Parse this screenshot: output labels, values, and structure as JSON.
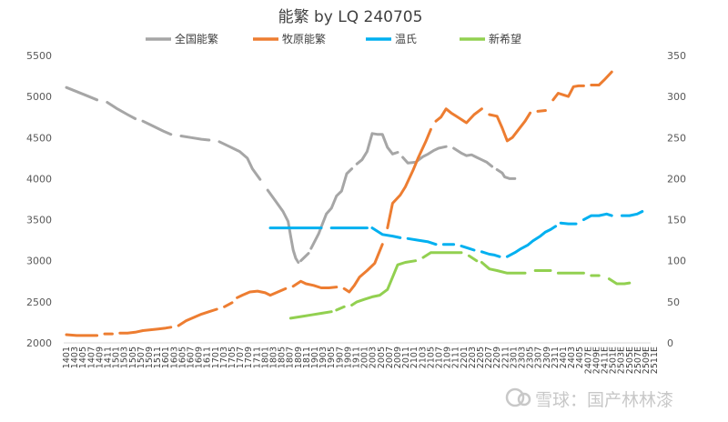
{
  "chart_data": {
    "type": "line",
    "title": "能繁 by LQ 240705",
    "xlabel": "",
    "ylabel": "",
    "y_left": {
      "min": 2000,
      "max": 5500,
      "ticks": [
        2000,
        2500,
        3000,
        3500,
        4000,
        4500,
        5000,
        5500
      ]
    },
    "y_right": {
      "min": 0,
      "max": 350,
      "ticks": [
        0,
        50,
        100,
        150,
        200,
        250,
        300,
        350
      ]
    },
    "grid": "none",
    "legend_position": "top",
    "x_tick_labels": [
      "1401",
      "1403",
      "1405",
      "1407",
      "1409",
      "1411",
      "1501",
      "1503",
      "1505",
      "1507",
      "1509",
      "1511",
      "1601",
      "1603",
      "1605",
      "1607",
      "1609",
      "1611",
      "1701",
      "1703",
      "1705",
      "1707",
      "1709",
      "1711",
      "1801",
      "1803",
      "1805",
      "1807",
      "1809",
      "1811",
      "1901",
      "1903",
      "1905",
      "1907",
      "1909",
      "1911",
      "2001",
      "2003",
      "2005",
      "2007",
      "2009",
      "2011",
      "2101",
      "2103",
      "2105",
      "2107",
      "2109",
      "2111",
      "2201",
      "2203",
      "2205",
      "2207",
      "2209",
      "2211",
      "2301",
      "2303",
      "2305",
      "2307",
      "2309",
      "2311",
      "2401",
      "2403",
      "2405",
      "2407E",
      "2409E",
      "2411E",
      "2501E",
      "2503E",
      "2505E",
      "2507E",
      "2509E",
      "2511E"
    ],
    "series": [
      {
        "name": "全国能繁",
        "axis": "left",
        "color": "#a6a6a6",
        "segments": [
          [
            [
              0,
              5110
            ],
            [
              4,
              5060
            ],
            [
              8,
              5010
            ],
            [
              12,
              4960
            ]
          ],
          [
            [
              16,
              4930
            ],
            [
              20,
              4850
            ],
            [
              24,
              4780
            ],
            [
              27,
              4730
            ]
          ],
          [
            [
              30,
              4700
            ],
            [
              34,
              4640
            ],
            [
              38,
              4580
            ],
            [
              41,
              4540
            ]
          ],
          [
            [
              45,
              4520
            ],
            [
              49,
              4500
            ],
            [
              53,
              4480
            ],
            [
              56,
              4470
            ]
          ],
          [
            [
              60,
              4450
            ],
            [
              64,
              4390
            ],
            [
              68,
              4330
            ],
            [
              71,
              4250
            ],
            [
              73,
              4120
            ],
            [
              76,
              3990
            ]
          ],
          [
            [
              79,
              3860
            ],
            [
              82,
              3730
            ],
            [
              85,
              3600
            ],
            [
              87,
              3480
            ],
            [
              88,
              3300
            ],
            [
              89,
              3130
            ],
            [
              90,
              3030
            ],
            [
              91,
              2980
            ]
          ],
          [
            [
              92,
              3000
            ],
            [
              93,
              3030
            ],
            [
              95,
              3090
            ]
          ],
          [
            [
              96,
              3150
            ],
            [
              99,
              3330
            ],
            [
              102,
              3570
            ],
            [
              104,
              3640
            ],
            [
              106,
              3790
            ],
            [
              108,
              3850
            ],
            [
              110,
              4060
            ],
            [
              112,
              4120
            ]
          ],
          [
            [
              114,
              4180
            ],
            [
              116,
              4230
            ],
            [
              118,
              4330
            ],
            [
              120,
              4550
            ],
            [
              122,
              4540
            ],
            [
              124,
              4540
            ],
            [
              126,
              4380
            ],
            [
              128,
              4300
            ],
            [
              130,
              4320
            ]
          ],
          [
            [
              132,
              4260
            ],
            [
              134,
              4190
            ],
            [
              137,
              4200
            ],
            [
              140,
              4270
            ],
            [
              142,
              4300
            ],
            [
              144,
              4340
            ],
            [
              146,
              4370
            ],
            [
              149,
              4390
            ]
          ],
          [
            [
              152,
              4370
            ],
            [
              155,
              4310
            ],
            [
              157,
              4280
            ],
            [
              159,
              4290
            ],
            [
              161,
              4260
            ],
            [
              163,
              4230
            ],
            [
              165,
              4200
            ],
            [
              167,
              4150
            ]
          ],
          [
            [
              169,
              4110
            ],
            [
              171,
              4070
            ],
            [
              172,
              4020
            ],
            [
              174,
              4000
            ],
            [
              176,
              4000
            ]
          ]
        ]
      },
      {
        "name": "牧原能繁",
        "axis": "right",
        "color": "#ed7d31",
        "segments": [
          [
            [
              0,
              10
            ],
            [
              4,
              9
            ],
            [
              8,
              9
            ],
            [
              12,
              9
            ]
          ],
          [
            [
              15,
              11
            ],
            [
              18,
              11
            ]
          ],
          [
            [
              21,
              12
            ],
            [
              24,
              12
            ],
            [
              27,
              13
            ],
            [
              30,
              15
            ],
            [
              33,
              16
            ],
            [
              36,
              17
            ],
            [
              39,
              18
            ],
            [
              41,
              19
            ]
          ],
          [
            [
              44,
              21
            ],
            [
              47,
              27
            ],
            [
              50,
              31
            ],
            [
              53,
              35
            ],
            [
              56,
              38
            ],
            [
              59,
              41
            ]
          ],
          [
            [
              62,
              44
            ],
            [
              65,
              49
            ]
          ],
          [
            [
              67,
              55
            ],
            [
              69,
              58
            ],
            [
              72,
              62
            ],
            [
              75,
              63
            ],
            [
              78,
              61
            ],
            [
              80,
              58
            ],
            [
              83,
              62
            ],
            [
              86,
              66
            ]
          ],
          [
            [
              89,
              69
            ],
            [
              92,
              75
            ],
            [
              94,
              72
            ],
            [
              97,
              70
            ],
            [
              100,
              67
            ],
            [
              103,
              67
            ],
            [
              106,
              68
            ]
          ],
          [
            [
              109,
              66
            ],
            [
              111,
              62
            ],
            [
              113,
              70
            ],
            [
              115,
              80
            ],
            [
              118,
              88
            ],
            [
              121,
              97
            ],
            [
              124,
              120
            ]
          ],
          [
            [
              126,
              140
            ],
            [
              128,
              170
            ],
            [
              131,
              180
            ],
            [
              133,
              190
            ],
            [
              136,
              210
            ],
            [
              138,
              225
            ],
            [
              141,
              245
            ],
            [
              143,
              260
            ]
          ],
          [
            [
              145,
              270
            ],
            [
              147,
              275
            ],
            [
              149,
              285
            ],
            [
              151,
              280
            ],
            [
              153,
              276
            ],
            [
              155,
              272
            ],
            [
              157,
              268
            ],
            [
              160,
              278
            ],
            [
              163,
              285
            ]
          ],
          [
            [
              166,
              278
            ],
            [
              169,
              276
            ],
            [
              171,
              262
            ],
            [
              173,
              246
            ],
            [
              175,
              250
            ],
            [
              177,
              258
            ],
            [
              180,
              270
            ],
            [
              182,
              280
            ]
          ],
          [
            [
              185,
              282
            ],
            [
              188,
              283
            ]
          ],
          [
            [
              191,
              296
            ],
            [
              193,
              304
            ],
            [
              195,
              302
            ],
            [
              197,
              300
            ],
            [
              199,
              312
            ],
            [
              201,
              313
            ],
            [
              203,
              313
            ]
          ],
          [
            [
              206,
              314
            ],
            [
              209,
              314
            ],
            [
              211,
              320
            ],
            [
              214,
              330
            ]
          ]
        ]
      },
      {
        "name": "温氏",
        "axis": "right",
        "color": "#00b0f0",
        "segments": [
          [
            [
              80,
              140
            ],
            [
              100,
              140
            ]
          ],
          [
            [
              104,
              140
            ],
            [
              118,
              140
            ]
          ],
          [
            [
              120,
              140
            ],
            [
              124,
              132
            ],
            [
              128,
              130
            ],
            [
              131,
              128
            ]
          ],
          [
            [
              134,
              127
            ],
            [
              138,
              125
            ],
            [
              142,
              123
            ],
            [
              145,
              120
            ]
          ],
          [
            [
              148,
              120
            ],
            [
              152,
              120
            ]
          ],
          [
            [
              155,
              118
            ],
            [
              158,
              115
            ],
            [
              160,
              113
            ]
          ],
          [
            [
              163,
              111
            ],
            [
              166,
              108
            ],
            [
              168,
              107
            ],
            [
              170,
              105
            ]
          ],
          [
            [
              173,
              105
            ],
            [
              176,
              110
            ],
            [
              178,
              114
            ],
            [
              181,
              119
            ],
            [
              183,
              124
            ],
            [
              186,
              130
            ],
            [
              188,
              135
            ],
            [
              190,
              138
            ],
            [
              192,
              142
            ]
          ],
          [
            [
              194,
              146
            ],
            [
              197,
              145
            ],
            [
              200,
              145
            ]
          ],
          [
            [
              203,
              150
            ],
            [
              206,
              155
            ],
            [
              209,
              155
            ],
            [
              212,
              157
            ],
            [
              214,
              155
            ]
          ],
          [
            [
              218,
              155
            ],
            [
              221,
              155
            ],
            [
              224,
              157
            ],
            [
              226,
              160
            ]
          ]
        ]
      },
      {
        "name": "新希望",
        "axis": "right",
        "color": "#92d050",
        "segments": [
          [
            [
              88,
              30
            ],
            [
              92,
              32
            ],
            [
              96,
              34
            ],
            [
              100,
              36
            ],
            [
              104,
              38
            ]
          ],
          [
            [
              106,
              40
            ],
            [
              109,
              44
            ]
          ],
          [
            [
              112,
              46
            ],
            [
              114,
              50
            ],
            [
              117,
              53
            ],
            [
              120,
              56
            ],
            [
              123,
              58
            ],
            [
              126,
              65
            ],
            [
              128,
              80
            ],
            [
              130,
              95
            ],
            [
              133,
              98
            ],
            [
              137,
              100
            ]
          ],
          [
            [
              140,
              104
            ],
            [
              143,
              110
            ],
            [
              147,
              110
            ],
            [
              151,
              110
            ],
            [
              155,
              110
            ]
          ],
          [
            [
              158,
              106
            ],
            [
              161,
              100
            ]
          ],
          [
            [
              163,
              98
            ],
            [
              166,
              90
            ],
            [
              169,
              88
            ],
            [
              173,
              85
            ],
            [
              177,
              85
            ],
            [
              180,
              85
            ]
          ],
          [
            [
              184,
              88
            ],
            [
              187,
              88
            ],
            [
              190,
              88
            ]
          ],
          [
            [
              193,
              85
            ],
            [
              197,
              85
            ],
            [
              200,
              85
            ],
            [
              203,
              85
            ]
          ],
          [
            [
              206,
              82
            ],
            [
              209,
              82
            ]
          ],
          [
            [
              213,
              78
            ],
            [
              216,
              72
            ],
            [
              219,
              72
            ],
            [
              221,
              73
            ]
          ]
        ]
      }
    ]
  },
  "watermark": {
    "text": "雪球：国产林林漆"
  }
}
